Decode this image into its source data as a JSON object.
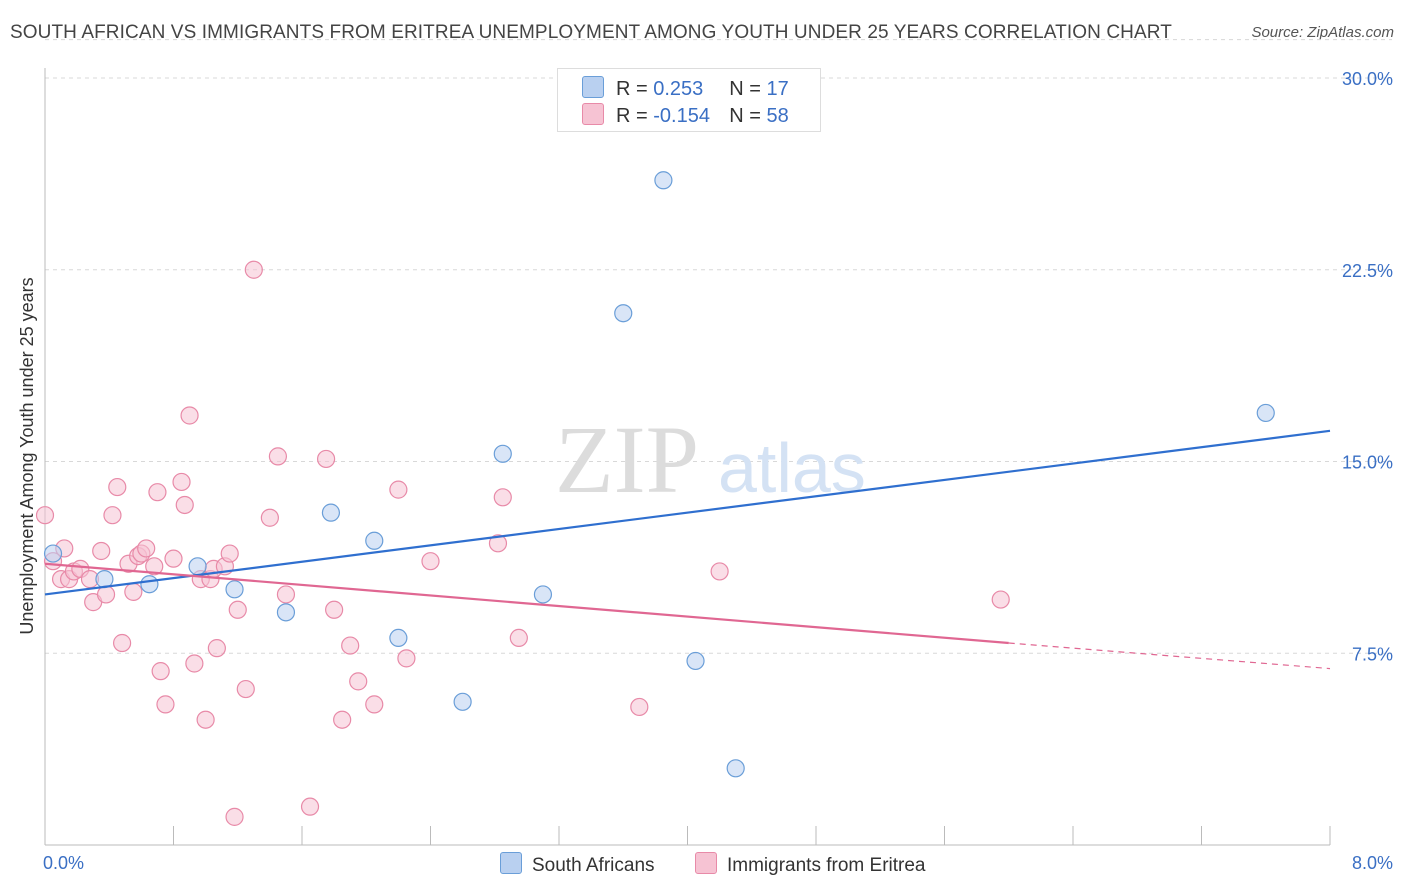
{
  "title": "SOUTH AFRICAN VS IMMIGRANTS FROM ERITREA UNEMPLOYMENT AMONG YOUTH UNDER 25 YEARS CORRELATION CHART",
  "source": "Source: ZipAtlas.com",
  "watermark": {
    "zip": "ZIP",
    "atlas": "atlas"
  },
  "colors": {
    "blue_fill": "#b9d0f0",
    "blue_stroke": "#6a9ed8",
    "blue_line": "#2f6fcf",
    "pink_fill": "#f6c3d3",
    "pink_stroke": "#e88aa8",
    "pink_line": "#e06792",
    "axis_label": "#3a6fc4",
    "grid": "#d8d8d8"
  },
  "legend": {
    "rows": [
      {
        "r_label": "R = ",
        "r_value": "0.253",
        "n_label": "N = ",
        "n_value": "17",
        "color": "blue"
      },
      {
        "r_label": "R = ",
        "r_value": "-0.154",
        "n_label": "N = ",
        "n_value": "58",
        "color": "pink"
      }
    ]
  },
  "bottom_legend": {
    "south_africans": "South Africans",
    "eritrea": "Immigrants from Eritrea"
  },
  "chart_data": {
    "type": "scatter",
    "title": "SOUTH AFRICAN VS IMMIGRANTS FROM ERITREA UNEMPLOYMENT AMONG YOUTH UNDER 25 YEARS CORRELATION CHART",
    "xlabel": "",
    "ylabel": "Unemployment Among Youth under 25 years",
    "xlim": [
      0,
      8.0
    ],
    "ylim": [
      0,
      30.0
    ],
    "x_tick_labels": [
      "0.0%",
      "8.0%"
    ],
    "y_ticks": [
      7.5,
      15.0,
      22.5,
      30.0
    ],
    "y_tick_labels": [
      "7.5%",
      "15.0%",
      "22.5%",
      "30.0%"
    ],
    "grid": true,
    "legend_position": "top-center",
    "series": [
      {
        "name": "South Africans",
        "color": "blue",
        "points": [
          [
            0.05,
            11.4
          ],
          [
            0.37,
            10.4
          ],
          [
            0.65,
            10.2
          ],
          [
            0.95,
            10.9
          ],
          [
            1.18,
            10.0
          ],
          [
            1.5,
            9.1
          ],
          [
            1.78,
            13.0
          ],
          [
            2.05,
            11.9
          ],
          [
            2.2,
            8.1
          ],
          [
            2.6,
            5.6
          ],
          [
            2.85,
            15.3
          ],
          [
            3.1,
            9.8
          ],
          [
            3.6,
            20.8
          ],
          [
            3.85,
            26.0
          ],
          [
            4.05,
            7.2
          ],
          [
            4.3,
            3.0
          ],
          [
            7.6,
            16.9
          ]
        ],
        "trend": {
          "x": [
            0,
            8.0
          ],
          "y": [
            9.8,
            16.2
          ]
        }
      },
      {
        "name": "Immigrants from Eritrea",
        "color": "pink",
        "points": [
          [
            0.0,
            12.9
          ],
          [
            0.05,
            11.1
          ],
          [
            0.1,
            10.4
          ],
          [
            0.12,
            11.6
          ],
          [
            0.15,
            10.4
          ],
          [
            0.18,
            10.7
          ],
          [
            0.22,
            10.8
          ],
          [
            0.28,
            10.4
          ],
          [
            0.3,
            9.5
          ],
          [
            0.35,
            11.5
          ],
          [
            0.38,
            9.8
          ],
          [
            0.42,
            12.9
          ],
          [
            0.45,
            14.0
          ],
          [
            0.48,
            7.9
          ],
          [
            0.52,
            11.0
          ],
          [
            0.55,
            9.9
          ],
          [
            0.58,
            11.3
          ],
          [
            0.6,
            11.4
          ],
          [
            0.63,
            11.6
          ],
          [
            0.68,
            10.9
          ],
          [
            0.7,
            13.8
          ],
          [
            0.72,
            6.8
          ],
          [
            0.75,
            5.5
          ],
          [
            0.8,
            11.2
          ],
          [
            0.85,
            14.2
          ],
          [
            0.87,
            13.3
          ],
          [
            0.9,
            16.8
          ],
          [
            0.93,
            7.1
          ],
          [
            0.97,
            10.4
          ],
          [
            1.0,
            4.9
          ],
          [
            1.03,
            10.4
          ],
          [
            1.05,
            10.8
          ],
          [
            1.07,
            7.7
          ],
          [
            1.12,
            10.9
          ],
          [
            1.15,
            11.4
          ],
          [
            1.18,
            1.1
          ],
          [
            1.2,
            9.2
          ],
          [
            1.25,
            6.1
          ],
          [
            1.3,
            22.5
          ],
          [
            1.4,
            12.8
          ],
          [
            1.45,
            15.2
          ],
          [
            1.5,
            9.8
          ],
          [
            1.65,
            1.5
          ],
          [
            1.75,
            15.1
          ],
          [
            1.8,
            9.2
          ],
          [
            1.85,
            4.9
          ],
          [
            1.9,
            7.8
          ],
          [
            1.95,
            6.4
          ],
          [
            2.05,
            5.5
          ],
          [
            2.2,
            13.9
          ],
          [
            2.25,
            7.3
          ],
          [
            2.4,
            11.1
          ],
          [
            2.85,
            13.6
          ],
          [
            2.82,
            11.8
          ],
          [
            2.95,
            8.1
          ],
          [
            3.7,
            5.4
          ],
          [
            4.2,
            10.7
          ],
          [
            5.95,
            9.6
          ]
        ],
        "trend": {
          "x": [
            0,
            6.0,
            8.0
          ],
          "y": [
            11.0,
            7.9,
            6.9
          ],
          "solid_until": 6.0
        }
      }
    ]
  }
}
